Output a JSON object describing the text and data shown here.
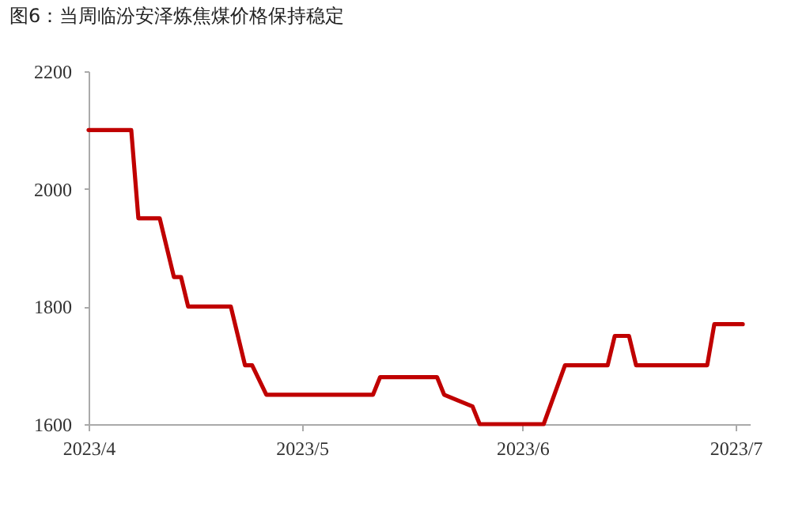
{
  "chart_data": {
    "type": "line",
    "title": "图6：当周临汾安泽炼焦煤价格保持稳定",
    "x": [
      "2023-04-01",
      "2023-04-07",
      "2023-04-08",
      "2023-04-11",
      "2023-04-13",
      "2023-04-14",
      "2023-04-15",
      "2023-04-21",
      "2023-04-23",
      "2023-04-24",
      "2023-04-26",
      "2023-05-11",
      "2023-05-12",
      "2023-05-20",
      "2023-05-21",
      "2023-05-25",
      "2023-05-26",
      "2023-06-04",
      "2023-06-07",
      "2023-06-13",
      "2023-06-14",
      "2023-06-16",
      "2023-06-17",
      "2023-06-27",
      "2023-06-28",
      "2023-07-02"
    ],
    "series": [
      {
        "color": "#c00000",
        "values": [
          2100,
          2100,
          1950,
          1950,
          1850,
          1850,
          1800,
          1800,
          1700,
          1700,
          1650,
          1650,
          1680,
          1680,
          1650,
          1630,
          1600,
          1600,
          1700,
          1700,
          1750,
          1750,
          1700,
          1700,
          1770,
          1770
        ]
      }
    ],
    "xlim": [
      "2023-04-01",
      "2023-07-03"
    ],
    "xticks": [
      {
        "value": "2023-04-01",
        "label": "2023/4"
      },
      {
        "value": "2023-05-01",
        "label": "2023/5"
      },
      {
        "value": "2023-06-01",
        "label": "2023/6"
      },
      {
        "value": "2023-07-01",
        "label": "2023/7"
      }
    ],
    "ylim": [
      1600,
      2200
    ],
    "yticks": [
      1600,
      1800,
      2000,
      2200
    ],
    "grid": false,
    "marker": "none",
    "line_style": "solid"
  }
}
